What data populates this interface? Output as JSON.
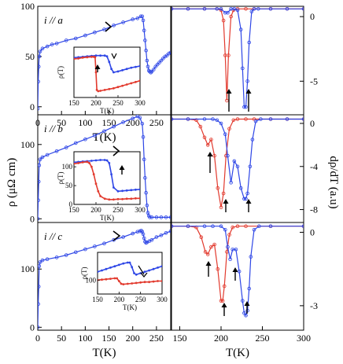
{
  "chart_data": [
    {
      "panel": "a",
      "type": "line",
      "panel_label": "i // a",
      "xlim": [
        0,
        280
      ],
      "ylim": [
        -8,
        100
      ],
      "x_ticks": [
        "0",
        "50",
        "100",
        "150",
        "200",
        "250"
      ],
      "y_ticks": [
        "0",
        "50",
        "100"
      ],
      "xlabel": "T(K)",
      "series": [
        {
          "color": "#2e46e6",
          "x": [
            0,
            1,
            2,
            3,
            5,
            10,
            20,
            30,
            40,
            60,
            80,
            100,
            120,
            140,
            160,
            180,
            200,
            210,
            217,
            220,
            222,
            224,
            226,
            228,
            230,
            232,
            234,
            236,
            238,
            240,
            244,
            248,
            252,
            256,
            260,
            264,
            268,
            272,
            276,
            280
          ],
          "y": [
            -2,
            25,
            40,
            50,
            55,
            58,
            60,
            62,
            63,
            66,
            68,
            71,
            74,
            77,
            81,
            84,
            87,
            88,
            90,
            90,
            86,
            76,
            66,
            56,
            46,
            40,
            36,
            35,
            34,
            35,
            37,
            40,
            42,
            44,
            46,
            48,
            50,
            51,
            53,
            54
          ]
        }
      ],
      "inset": {
        "xlim": [
          150,
          300
        ],
        "ylim": [
          0,
          120
        ],
        "x_ticks": [
          "150",
          "200",
          "250",
          "300"
        ],
        "ylabel": "ρ(T)",
        "xlabel": "T(K)",
        "series": [
          {
            "color": "#2e46e6",
            "x": [
              150,
              160,
              170,
              180,
              190,
              200,
              210,
              220,
              225,
              230,
              235,
              240,
              250,
              260,
              270,
              280,
              290,
              300
            ],
            "y": [
              95,
              96,
              97,
              98,
              99,
              100,
              100,
              100,
              98,
              85,
              68,
              60,
              62,
              65,
              68,
              71,
              73,
              75
            ]
          },
          {
            "color": "#e23a2e",
            "x": [
              150,
              160,
              170,
              180,
              190,
              195,
              198,
              200,
              202,
              205,
              210,
              220,
              230,
              240,
              250,
              260,
              270,
              280,
              290,
              300
            ],
            "y": [
              92,
              93,
              95,
              96,
              97,
              97,
              96,
              60,
              18,
              15,
              16,
              18,
              20,
              22,
              25,
              28,
              31,
              34,
              37,
              40
            ]
          }
        ]
      }
    },
    {
      "panel": "b",
      "type": "line",
      "panel_label": "i // b",
      "xlim": [
        0,
        280
      ],
      "ylim": [
        -5,
        140
      ],
      "y_ticks": [
        "0",
        "100"
      ],
      "series": [
        {
          "color": "#2e46e6",
          "x": [
            0,
            1,
            2,
            3,
            5,
            10,
            20,
            40,
            60,
            80,
            100,
            120,
            140,
            160,
            180,
            200,
            210,
            215,
            220,
            222,
            224,
            226,
            228,
            230,
            232,
            234,
            236,
            240,
            250,
            260,
            270,
            280
          ],
          "y": [
            0,
            25,
            50,
            72,
            80,
            83,
            86,
            91,
            96,
            102,
            107,
            112,
            118,
            124,
            130,
            135,
            138,
            136,
            128,
            110,
            80,
            55,
            35,
            18,
            8,
            4,
            2,
            2,
            2,
            2,
            2,
            2
          ]
        }
      ],
      "inset": {
        "xlim": [
          150,
          300
        ],
        "ylim": [
          0,
          140
        ],
        "x_ticks": [
          "150",
          "200",
          "250",
          "300"
        ],
        "y_ticks": [
          "0",
          "50",
          "100"
        ],
        "ylabel": "ρ(T)",
        "xlabel": "T(K)",
        "series": [
          {
            "color": "#2e46e6",
            "x": [
              150,
              160,
              170,
              180,
              190,
              200,
              210,
              220,
              225,
              230,
              235,
              240,
              250,
              260,
              270,
              280,
              290,
              300
            ],
            "y": [
              112,
              113,
              114,
              115,
              116,
              117,
              118,
              118,
              117,
              110,
              80,
              45,
              35,
              36,
              37,
              38,
              39,
              40
            ]
          },
          {
            "color": "#e23a2e",
            "x": [
              150,
              160,
              170,
              180,
              185,
              190,
              195,
              200,
              205,
              210,
              220,
              230,
              240,
              250,
              260,
              270,
              280,
              290,
              300
            ],
            "y": [
              108,
              110,
              112,
              113,
              110,
              100,
              80,
              55,
              35,
              22,
              15,
              13,
              13,
              14,
              14,
              15,
              15,
              16,
              16
            ]
          }
        ]
      }
    },
    {
      "panel": "c",
      "type": "line",
      "panel_label": "i // c",
      "xlim": [
        0,
        280
      ],
      "ylim": [
        -5,
        180
      ],
      "x_ticks": [
        "0",
        "50",
        "100",
        "150",
        "200",
        "250"
      ],
      "y_ticks": [
        "0",
        "100"
      ],
      "xlabel": "T(K)",
      "series": [
        {
          "color": "#2e46e6",
          "x": [
            0,
            1,
            2,
            3,
            5,
            10,
            20,
            40,
            60,
            80,
            100,
            120,
            140,
            160,
            180,
            200,
            210,
            215,
            218,
            220,
            222,
            224,
            226,
            228,
            230,
            235,
            240,
            250,
            260,
            270,
            280
          ],
          "y": [
            0,
            40,
            70,
            105,
            112,
            115,
            117,
            120,
            124,
            129,
            134,
            139,
            144,
            150,
            155,
            161,
            164,
            165,
            166,
            164,
            160,
            153,
            147,
            145,
            146,
            148,
            150,
            155,
            158,
            162,
            165
          ]
        }
      ],
      "inset": {
        "xlim": [
          150,
          300
        ],
        "ylim": [
          70,
          160
        ],
        "x_ticks": [
          "150",
          "200",
          "250",
          "300"
        ],
        "y_ticks": [
          "100"
        ],
        "ylabel": "ρ(T)",
        "xlabel": "T(K)",
        "series": [
          {
            "color": "#2e46e6",
            "x": [
              150,
              160,
              170,
              180,
              190,
              200,
              210,
              220,
              225,
              230,
              235,
              240,
              250,
              260,
              270,
              280,
              290,
              300
            ],
            "y": [
              118,
              121,
              124,
              127,
              130,
              133,
              136,
              138,
              138,
              128,
              115,
              112,
              115,
              118,
              121,
              124,
              127,
              130
            ]
          },
          {
            "color": "#e23a2e",
            "x": [
              150,
              160,
              170,
              180,
              190,
              195,
              200,
              205,
              210,
              220,
              230,
              240,
              250,
              260,
              270,
              280,
              290,
              300
            ],
            "y": [
              100,
              101,
              102,
              103,
              104,
              104,
              98,
              92,
              91,
              92,
              93,
              94,
              95,
              96,
              96,
              97,
              98,
              98
            ]
          }
        ]
      }
    },
    {
      "panel": "d",
      "type": "line",
      "xlim": [
        140,
        300
      ],
      "ylim": [
        -7.6,
        0.8
      ],
      "y_ticks": [
        "0",
        "-5"
      ],
      "series": [
        {
          "color": "#e23a2e",
          "x": [
            140,
            160,
            180,
            195,
            200,
            203,
            205,
            207,
            209,
            212,
            215,
            220,
            230,
            240,
            260,
            280,
            300
          ],
          "y": [
            0.6,
            0.6,
            0.6,
            0.6,
            0.5,
            -0.3,
            -3,
            -6.5,
            -3,
            0,
            0.5,
            0.6,
            0.6,
            0.6,
            0.6,
            0.6,
            0.6
          ]
        },
        {
          "color": "#2e46e6",
          "x": [
            140,
            160,
            180,
            195,
            200,
            205,
            208,
            212,
            216,
            220,
            224,
            226,
            228,
            230,
            232,
            234,
            237,
            240,
            245,
            260,
            280,
            300
          ],
          "y": [
            0.6,
            0.6,
            0.6,
            0.6,
            0.6,
            0.3,
            0.3,
            0.6,
            0.6,
            0.5,
            -1,
            -4,
            -7,
            -7,
            -5,
            -2,
            0.4,
            0.6,
            0.6,
            0.6,
            0.6,
            0.6
          ]
        }
      ]
    },
    {
      "panel": "e",
      "type": "line",
      "xlim": [
        140,
        300
      ],
      "ylim": [
        -9.2,
        0.8
      ],
      "y_ticks": [
        "0",
        "-4",
        "-8"
      ],
      "series": [
        {
          "color": "#e23a2e",
          "x": [
            140,
            160,
            170,
            175,
            180,
            184,
            188,
            192,
            196,
            200,
            203,
            206,
            210,
            215,
            220,
            230,
            240,
            260,
            280,
            300
          ],
          "y": [
            0.4,
            0.4,
            0.3,
            -0.3,
            -1.3,
            -2,
            -1.5,
            -3,
            -6,
            -7.8,
            -6.5,
            -3,
            -0.5,
            0.3,
            0.4,
            0.4,
            0.4,
            0.4,
            0.4,
            0.4
          ]
        },
        {
          "color": "#2e46e6",
          "x": [
            140,
            160,
            180,
            190,
            195,
            200,
            205,
            208,
            212,
            216,
            220,
            224,
            228,
            230,
            232,
            235,
            238,
            242,
            248,
            260,
            280,
            300
          ],
          "y": [
            0.4,
            0.4,
            0.4,
            0.4,
            0.3,
            0,
            -1,
            -3,
            -5.5,
            -3.5,
            -4,
            -6,
            -7,
            -7,
            -6.5,
            -4,
            -1.5,
            0.2,
            0.4,
            0.4,
            0.4,
            0.4
          ]
        }
      ]
    },
    {
      "panel": "f",
      "type": "line",
      "xlim": [
        140,
        300
      ],
      "ylim": [
        -4.0,
        0.4
      ],
      "x_ticks": [
        "150",
        "200",
        "250",
        "300"
      ],
      "y_ticks": [
        "0",
        "-3"
      ],
      "xlabel": "T(K)",
      "series": [
        {
          "color": "#e23a2e",
          "x": [
            140,
            160,
            170,
            176,
            181,
            184,
            188,
            192,
            196,
            200,
            202,
            204,
            207,
            210,
            214,
            220,
            230,
            260,
            300
          ],
          "y": [
            0.25,
            0.25,
            0.2,
            -0.2,
            -0.8,
            -0.9,
            -0.6,
            -0.5,
            -1.5,
            -2.8,
            -2.8,
            -2.2,
            -0.8,
            -0.1,
            0.2,
            0.25,
            0.25,
            0.25,
            0.25
          ]
        },
        {
          "color": "#2e46e6",
          "x": [
            140,
            160,
            180,
            190,
            200,
            205,
            208,
            211,
            214,
            218,
            222,
            226,
            228,
            230,
            232,
            234,
            236,
            240,
            246,
            260,
            300
          ],
          "y": [
            0.25,
            0.25,
            0.25,
            0.25,
            0.25,
            0.1,
            -0.6,
            -1.1,
            -0.7,
            -0.7,
            -1.6,
            -2.8,
            -3.3,
            -3.4,
            -3.2,
            -2.3,
            -1,
            0.1,
            0.25,
            0.25,
            0.25
          ]
        }
      ]
    }
  ],
  "left_ylabel": "ρ (μΩ cm)",
  "right_ylabel": "dρ/dT (a.u)"
}
